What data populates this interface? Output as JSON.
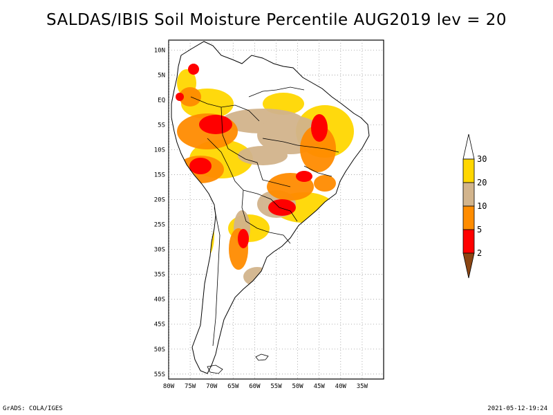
{
  "title": "SALDAS/IBIS Soil Moisture Percentile AUG2019 lev = 20",
  "map": {
    "lon_range": [
      -80,
      -30
    ],
    "lat_range": [
      -56,
      12
    ],
    "lat_ticks": [
      "10N",
      "5N",
      "EQ",
      "5S",
      "10S",
      "15S",
      "20S",
      "25S",
      "30S",
      "35S",
      "40S",
      "45S",
      "50S",
      "55S"
    ],
    "lon_ticks": [
      "80W",
      "75W",
      "70W",
      "65W",
      "60W",
      "55W",
      "50W",
      "45W",
      "40W",
      "35W"
    ],
    "grid": "dotted",
    "region": "South America"
  },
  "legend": {
    "labels": [
      "2",
      "5",
      "10",
      "20",
      "30"
    ],
    "colors": [
      "#8B4513",
      "#ff0000",
      "#ff8c00",
      "#d2b48c",
      "#ffd700"
    ],
    "placement": "right"
  },
  "footer": {
    "credit": "GrADS: COLA/IGES",
    "timestamp": "2021-05-12-19:24"
  }
}
